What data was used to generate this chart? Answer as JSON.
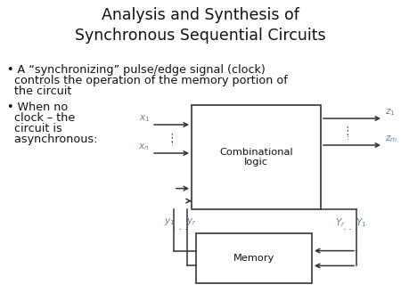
{
  "title_line1": "Analysis and Synthesis of",
  "title_line2": "Synchronous Sequential Circuits",
  "bullet1_prefix": "• A “synchronizing” pulse/edge signal (clock)",
  "bullet1_line2": "  controls the operation of the memory portion of",
  "bullet1_line3": "  the circuit",
  "bullet2_line1": "• When no",
  "bullet2_line2": "  clock – the",
  "bullet2_line3": "  circuit is",
  "bullet2_line4": "  asynchronous:",
  "bg_color": "#ffffff",
  "box_edge_color": "#444444",
  "arrow_color": "#333333",
  "label_color": "#6080a8",
  "title_fontsize": 12.5,
  "bullet_fontsize": 9.2,
  "diagram_label_fontsize": 8.2,
  "io_label_fontsize": 7.5
}
